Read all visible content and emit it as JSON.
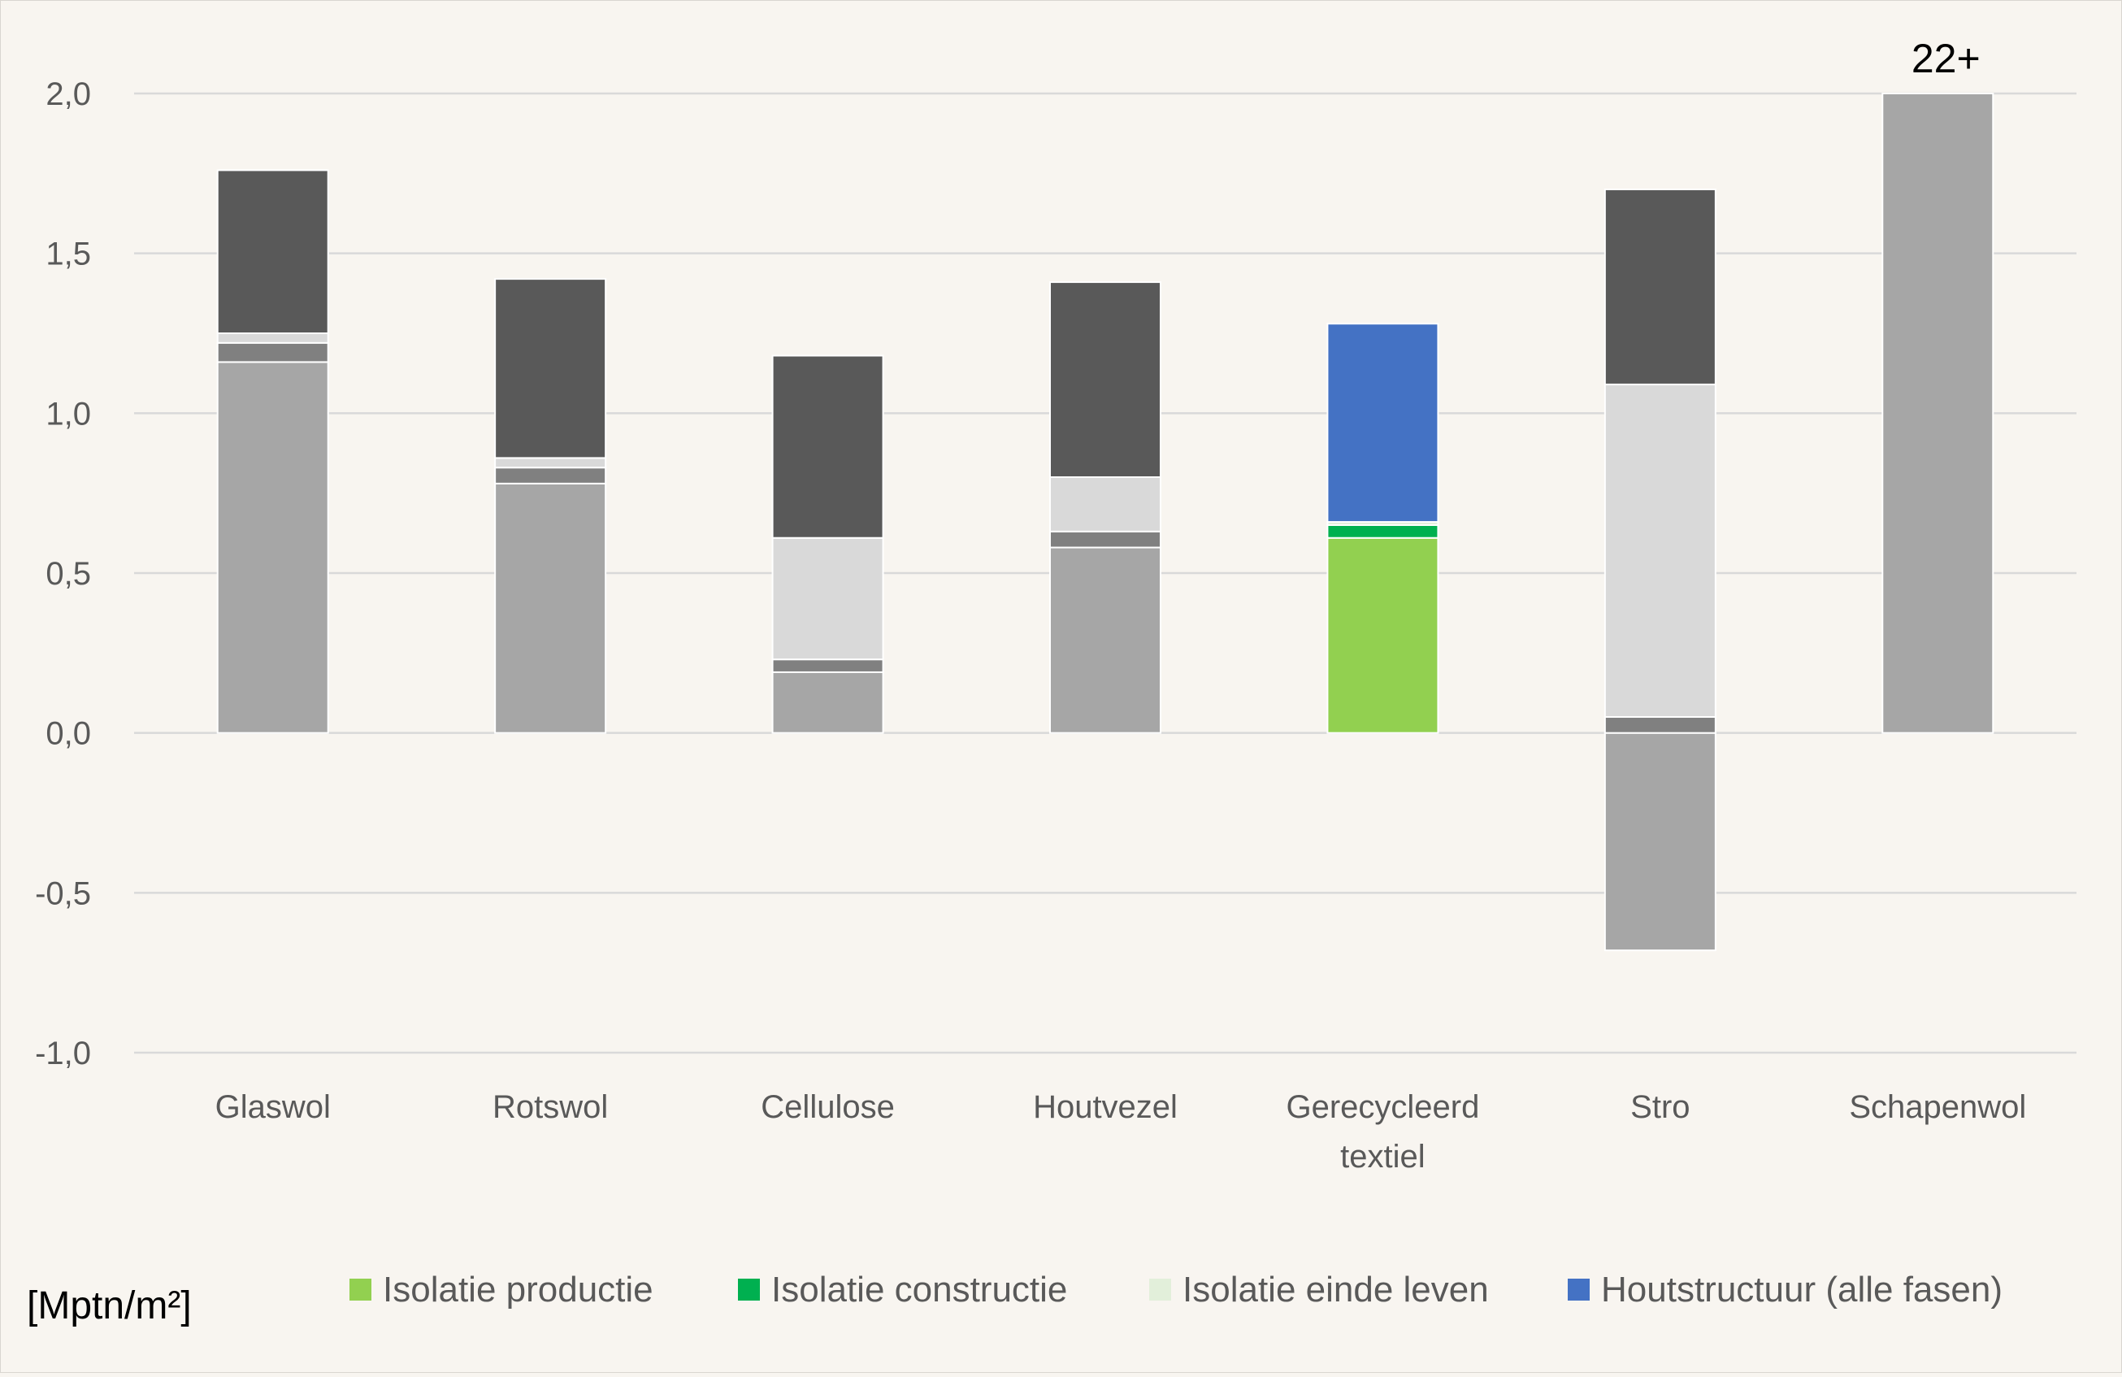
{
  "chart_data": {
    "type": "bar",
    "stacked": true,
    "categories": [
      "Glaswol",
      "Rotswol",
      "Cellulose",
      "Houtvezel",
      "Gerecycleerd textiel",
      "Stro",
      "Schapenwol"
    ],
    "category_lines": [
      [
        "Glaswol"
      ],
      [
        "Rotswol"
      ],
      [
        "Cellulose"
      ],
      [
        "Houtvezel"
      ],
      [
        "Gerecycleerd",
        "textiel"
      ],
      [
        "Stro"
      ],
      [
        "Schapenwol"
      ]
    ],
    "series": [
      {
        "name": "Isolatie productie",
        "color": "#92d050",
        "values": [
          1.16,
          0.78,
          0.19,
          0.58,
          0.61,
          -0.68,
          2.0
        ]
      },
      {
        "name": "Isolatie constructie",
        "color": "#00b050",
        "values": [
          0.06,
          0.05,
          0.04,
          0.05,
          0.04,
          0.05,
          0
        ]
      },
      {
        "name": "Isolatie einde leven",
        "color": "#e2efda",
        "values": [
          0.03,
          0.03,
          0.38,
          0.17,
          0.01,
          1.04,
          0
        ]
      },
      {
        "name": "Houtstructuur (alle fasen)",
        "color": "#4472c4",
        "values": [
          0.51,
          0.56,
          0.57,
          0.61,
          0.62,
          0.61,
          0
        ]
      }
    ],
    "greyed_out": [
      true,
      true,
      true,
      true,
      false,
      true,
      true
    ],
    "greyed_colors": [
      "#a6a6a6",
      "#808080",
      "#d9d9d9",
      "#595959"
    ],
    "yticks": [
      "2,0",
      "1,5",
      "1,0",
      "0,5",
      "0,0",
      "-0,5",
      "-1,0"
    ],
    "ylim": [
      -1.0,
      2.0
    ],
    "grid": true,
    "legend_position": "bottom",
    "unit_label": "[Mptn/m²]",
    "annotations": [
      {
        "category": "Schapenwol",
        "text": "22+"
      }
    ]
  }
}
